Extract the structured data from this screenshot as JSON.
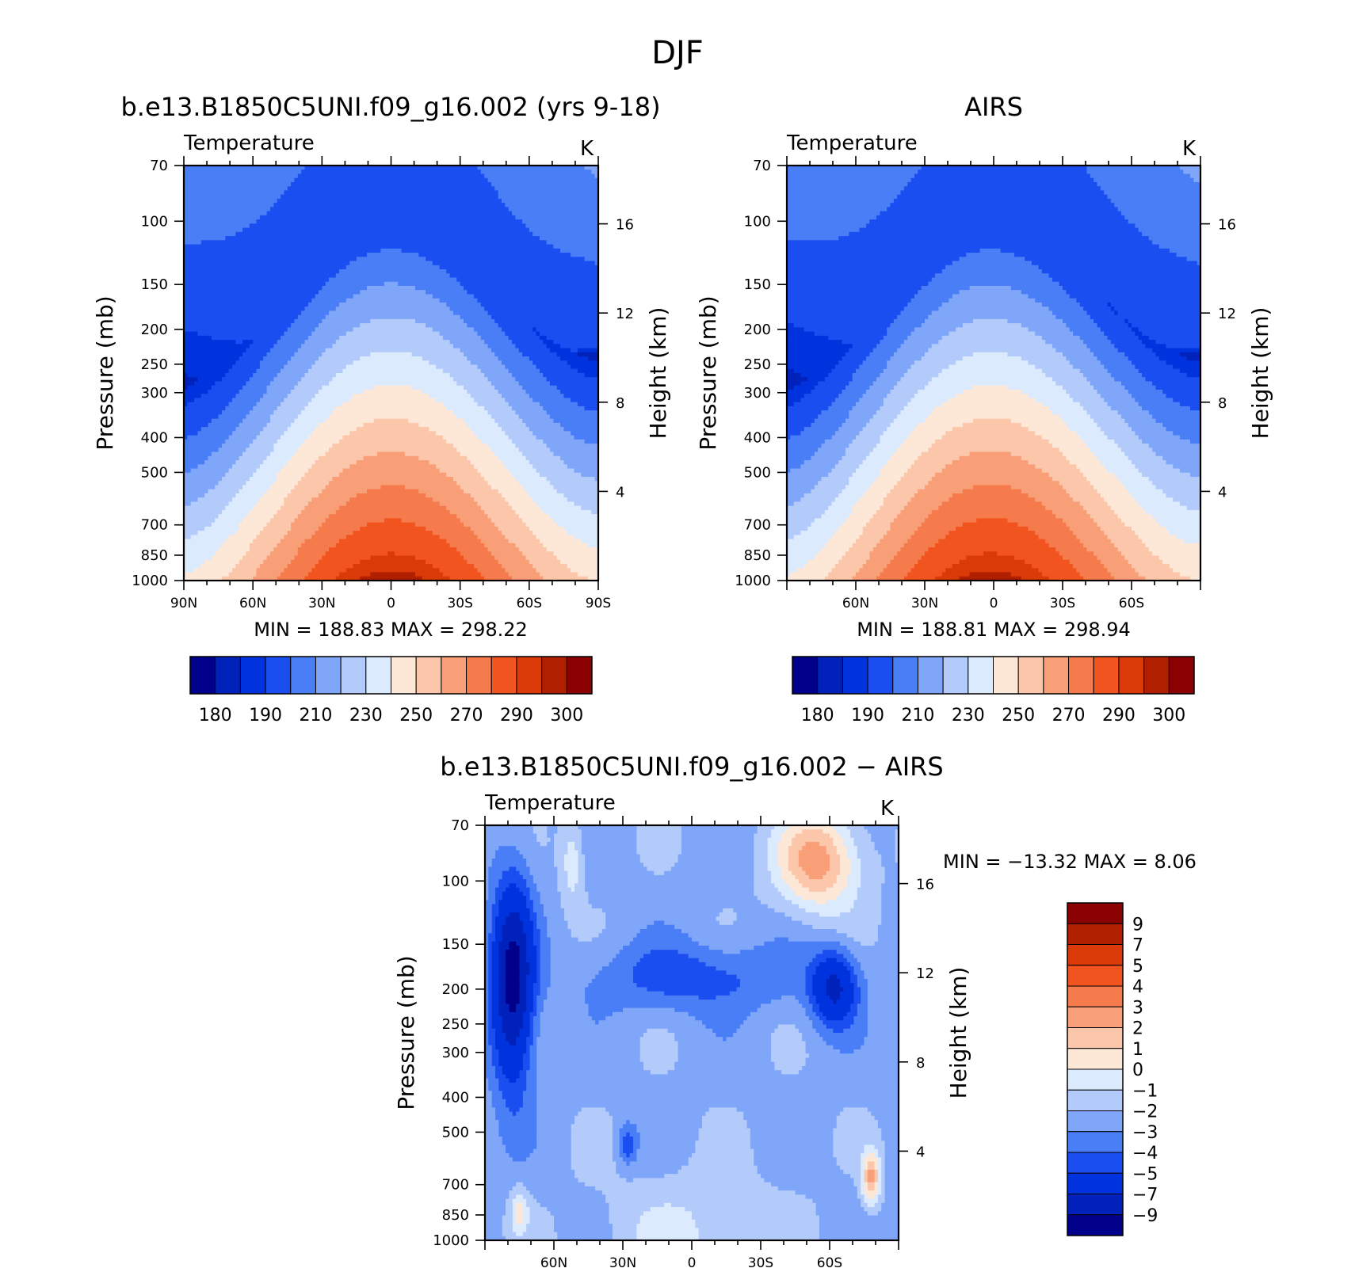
{
  "figure": {
    "title": "DJF"
  },
  "palette": {
    "abs": [
      "#00008b",
      "#0022bb",
      "#0033dd",
      "#1a4ef0",
      "#4a7ef7",
      "#7fa6f8",
      "#b3cbfb",
      "#dceafd",
      "#fde8d8",
      "#fcc6aa",
      "#f99f78",
      "#f57a4c",
      "#f2541f",
      "#d93a08",
      "#b02000",
      "#8b0000"
    ],
    "diff": [
      "#00008b",
      "#0022bb",
      "#0033dd",
      "#1a4ef0",
      "#4a7ef7",
      "#7fa6f8",
      "#b3cbfb",
      "#dceafd",
      "#fde8d8",
      "#fcc6aa",
      "#f99f78",
      "#f57a4c",
      "#f2541f",
      "#d93a08",
      "#b02000",
      "#8b0000"
    ]
  },
  "chart_data": [
    {
      "id": "model",
      "type": "contour",
      "title": "b.e13.B1850C5UNI.f09_g16.002 (yrs 9-18)",
      "left_label": "Temperature",
      "right_label": "K",
      "ylabel": "Pressure (mb)",
      "y2label": "Height (km)",
      "x_range": [
        90,
        -90
      ],
      "y_range_mb": [
        1000,
        70
      ],
      "y_ticks": [
        "70",
        "100",
        "150",
        "200",
        "250",
        "300",
        "400",
        "500",
        "700",
        "850",
        "1000"
      ],
      "y2_ticks": [
        "4",
        "8",
        "12",
        "16"
      ],
      "x_ticks": [
        "90N",
        "60N",
        "30N",
        "0",
        "30S",
        "60S",
        "90S"
      ],
      "stats": "MIN =  188.83   MAX =  298.22",
      "levels": [
        180,
        185,
        190,
        200,
        210,
        220,
        230,
        240,
        250,
        260,
        270,
        280,
        290,
        295,
        300
      ],
      "colorbar_labels": [
        "180",
        "190",
        "210",
        "230",
        "250",
        "270",
        "290",
        "300"
      ],
      "min": 188.83,
      "max": 298.22
    },
    {
      "id": "obs",
      "type": "contour",
      "title": "AIRS",
      "left_label": "Temperature",
      "right_label": "K",
      "ylabel": "Pressure (mb)",
      "y2label": "Height (km)",
      "x_range": [
        90,
        -90
      ],
      "y_range_mb": [
        1000,
        70
      ],
      "y_ticks": [
        "70",
        "100",
        "150",
        "200",
        "250",
        "300",
        "400",
        "500",
        "700",
        "850",
        "1000"
      ],
      "y2_ticks": [
        "4",
        "8",
        "12",
        "16"
      ],
      "x_ticks": [
        "60N",
        "30N",
        "0",
        "30S",
        "60S"
      ],
      "stats": "MIN =  188.81   MAX =  298.94",
      "levels": [
        180,
        185,
        190,
        200,
        210,
        220,
        230,
        240,
        250,
        260,
        270,
        280,
        290,
        295,
        300
      ],
      "colorbar_labels": [
        "180",
        "190",
        "210",
        "230",
        "250",
        "270",
        "290",
        "300"
      ],
      "min": 188.81,
      "max": 298.94
    },
    {
      "id": "diff",
      "type": "contour",
      "title": "b.e13.B1850C5UNI.f09_g16.002 - AIRS",
      "left_label": "Temperature",
      "right_label": "K",
      "ylabel": "Pressure (mb)",
      "y2label": "Height (km)",
      "x_range": [
        90,
        -90
      ],
      "y_range_mb": [
        1000,
        70
      ],
      "y_ticks": [
        "70",
        "100",
        "150",
        "200",
        "250",
        "300",
        "400",
        "500",
        "700",
        "850",
        "1000"
      ],
      "y2_ticks": [
        "4",
        "8",
        "12",
        "16"
      ],
      "x_ticks": [
        "60N",
        "30N",
        "0",
        "30S",
        "60S"
      ],
      "stats": "MIN = -13.32   MAX =    8.06",
      "levels": [
        -9,
        -7,
        -5,
        -4,
        -3,
        -2,
        -1,
        0,
        1,
        2,
        3,
        4,
        5,
        7,
        9
      ],
      "colorbar_labels": [
        "9",
        "7",
        "5",
        "4",
        "3",
        "2",
        "1",
        "0",
        "-1",
        "-2",
        "-3",
        "-4",
        "-5",
        "-7",
        "-9"
      ],
      "min": -13.32,
      "max": 8.06
    }
  ]
}
